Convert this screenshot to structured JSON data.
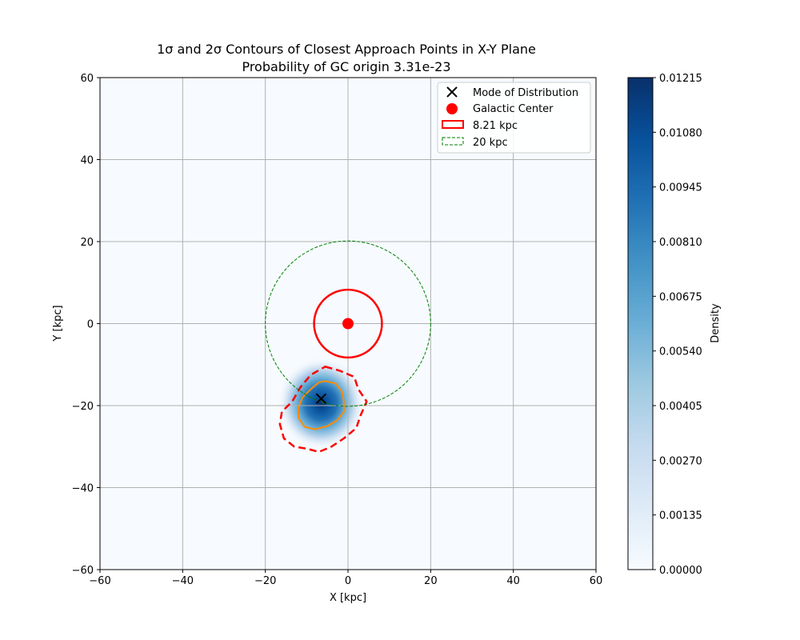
{
  "chart_data": {
    "type": "heatmap",
    "title_line1": "1σ and 2σ Contours of Closest Approach Points in X-Y Plane",
    "title_line2": "Probability of GC origin 3.31e-23",
    "xlabel": "X [kpc]",
    "ylabel": "Y [kpc]",
    "xlim": [
      -60,
      60
    ],
    "ylim": [
      -60,
      60
    ],
    "xticks": [
      "−60",
      "−40",
      "−20",
      "0",
      "20",
      "40",
      "60"
    ],
    "yticks": [
      "−60",
      "−40",
      "−20",
      "0",
      "20",
      "40",
      "60"
    ],
    "grid": true,
    "colorbar": {
      "label": "Density",
      "colormap": "Blues",
      "min": 0.0,
      "max": 0.01215,
      "ticks": [
        "0.00000",
        "0.00135",
        "0.00270",
        "0.00405",
        "0.00540",
        "0.00675",
        "0.00810",
        "0.00945",
        "0.01080",
        "0.01215"
      ]
    },
    "density_peak": {
      "x": -6.5,
      "y": -19.5
    },
    "mode": {
      "x": -6.5,
      "y": -18.3
    },
    "galactic_center": {
      "x": 0,
      "y": 0
    },
    "circles": [
      {
        "name": "8.21 kpc",
        "radius": 8.21,
        "color": "#ff0000",
        "style": "solid"
      },
      {
        "name": "20 kpc",
        "radius": 20,
        "color": "#008000",
        "style": "dashed"
      }
    ],
    "contours": [
      {
        "level": "1σ",
        "color": "#ff8c00",
        "style": "solid",
        "points": [
          [
            -5.5,
            -14
          ],
          [
            -3,
            -14.6
          ],
          [
            -1.5,
            -16.5
          ],
          [
            -1,
            -19
          ],
          [
            -1,
            -21.5
          ],
          [
            -2.5,
            -23.5
          ],
          [
            -5,
            -25
          ],
          [
            -8,
            -25.8
          ],
          [
            -10.5,
            -25.2
          ],
          [
            -12,
            -23
          ],
          [
            -12,
            -20.5
          ],
          [
            -11,
            -18
          ],
          [
            -9,
            -16
          ],
          [
            -7,
            -14.3
          ]
        ]
      },
      {
        "level": "2σ",
        "color": "#ff0000",
        "style": "dashed",
        "points": [
          [
            -5.5,
            -10.5
          ],
          [
            -2,
            -11.5
          ],
          [
            1.5,
            -13
          ],
          [
            2.5,
            -16
          ],
          [
            4.5,
            -19
          ],
          [
            3,
            -22.5
          ],
          [
            2,
            -25.5
          ],
          [
            -1,
            -28
          ],
          [
            -4,
            -30
          ],
          [
            -7,
            -31.3
          ],
          [
            -10,
            -30.5
          ],
          [
            -13,
            -30
          ],
          [
            -15.5,
            -28
          ],
          [
            -16.5,
            -24.5
          ],
          [
            -16,
            -21.5
          ],
          [
            -13.5,
            -19
          ],
          [
            -11.5,
            -15.5
          ],
          [
            -9,
            -12.5
          ]
        ]
      }
    ],
    "legend": {
      "position": "top-right",
      "entries": [
        {
          "label": "Mode of Distribution",
          "marker": "x",
          "color": "#000000"
        },
        {
          "label": "Galactic Center",
          "marker": "circle",
          "color": "#ff0000"
        },
        {
          "label": "8.21 kpc",
          "marker": "rect",
          "color": "#ff0000"
        },
        {
          "label": "20 kpc",
          "marker": "dashed-rect",
          "color": "#008000"
        }
      ]
    }
  }
}
